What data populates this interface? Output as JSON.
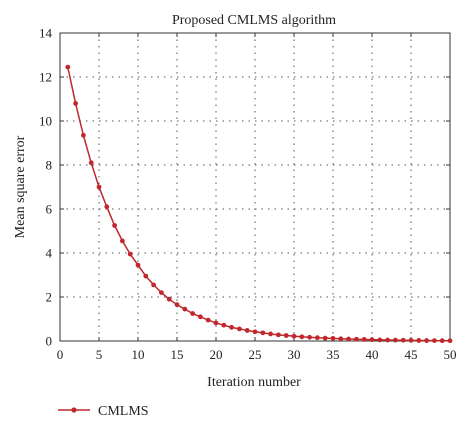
{
  "chart_data": {
    "type": "line",
    "title": "Proposed CMLMS algorithm",
    "xlabel": "Iteration number",
    "ylabel": "Mean square error",
    "xlim": [
      0,
      50
    ],
    "ylim": [
      0,
      14
    ],
    "xticks": [
      0,
      5,
      10,
      15,
      20,
      25,
      30,
      35,
      40,
      45,
      50
    ],
    "yticks": [
      0,
      2,
      4,
      6,
      8,
      10,
      12,
      14
    ],
    "grid": true,
    "legend_position": "bottom-left, below plot",
    "series": [
      {
        "name": "CMLMS",
        "color": "#c0282d",
        "x": [
          1,
          2,
          3,
          4,
          5,
          6,
          7,
          8,
          9,
          10,
          11,
          12,
          13,
          14,
          15,
          16,
          17,
          18,
          19,
          20,
          21,
          22,
          23,
          24,
          25,
          26,
          27,
          28,
          29,
          30,
          31,
          32,
          33,
          34,
          35,
          36,
          37,
          38,
          39,
          40,
          41,
          42,
          43,
          44,
          45,
          46,
          47,
          48,
          49,
          50
        ],
        "y": [
          12.45,
          10.8,
          9.35,
          8.1,
          7.0,
          6.1,
          5.25,
          4.55,
          3.95,
          3.45,
          2.95,
          2.55,
          2.2,
          1.9,
          1.65,
          1.45,
          1.25,
          1.1,
          0.95,
          0.82,
          0.72,
          0.62,
          0.55,
          0.48,
          0.42,
          0.37,
          0.32,
          0.28,
          0.25,
          0.22,
          0.19,
          0.17,
          0.15,
          0.13,
          0.12,
          0.1,
          0.09,
          0.08,
          0.07,
          0.06,
          0.05,
          0.045,
          0.04,
          0.035,
          0.03,
          0.025,
          0.02,
          0.018,
          0.015,
          0.012
        ]
      }
    ]
  }
}
